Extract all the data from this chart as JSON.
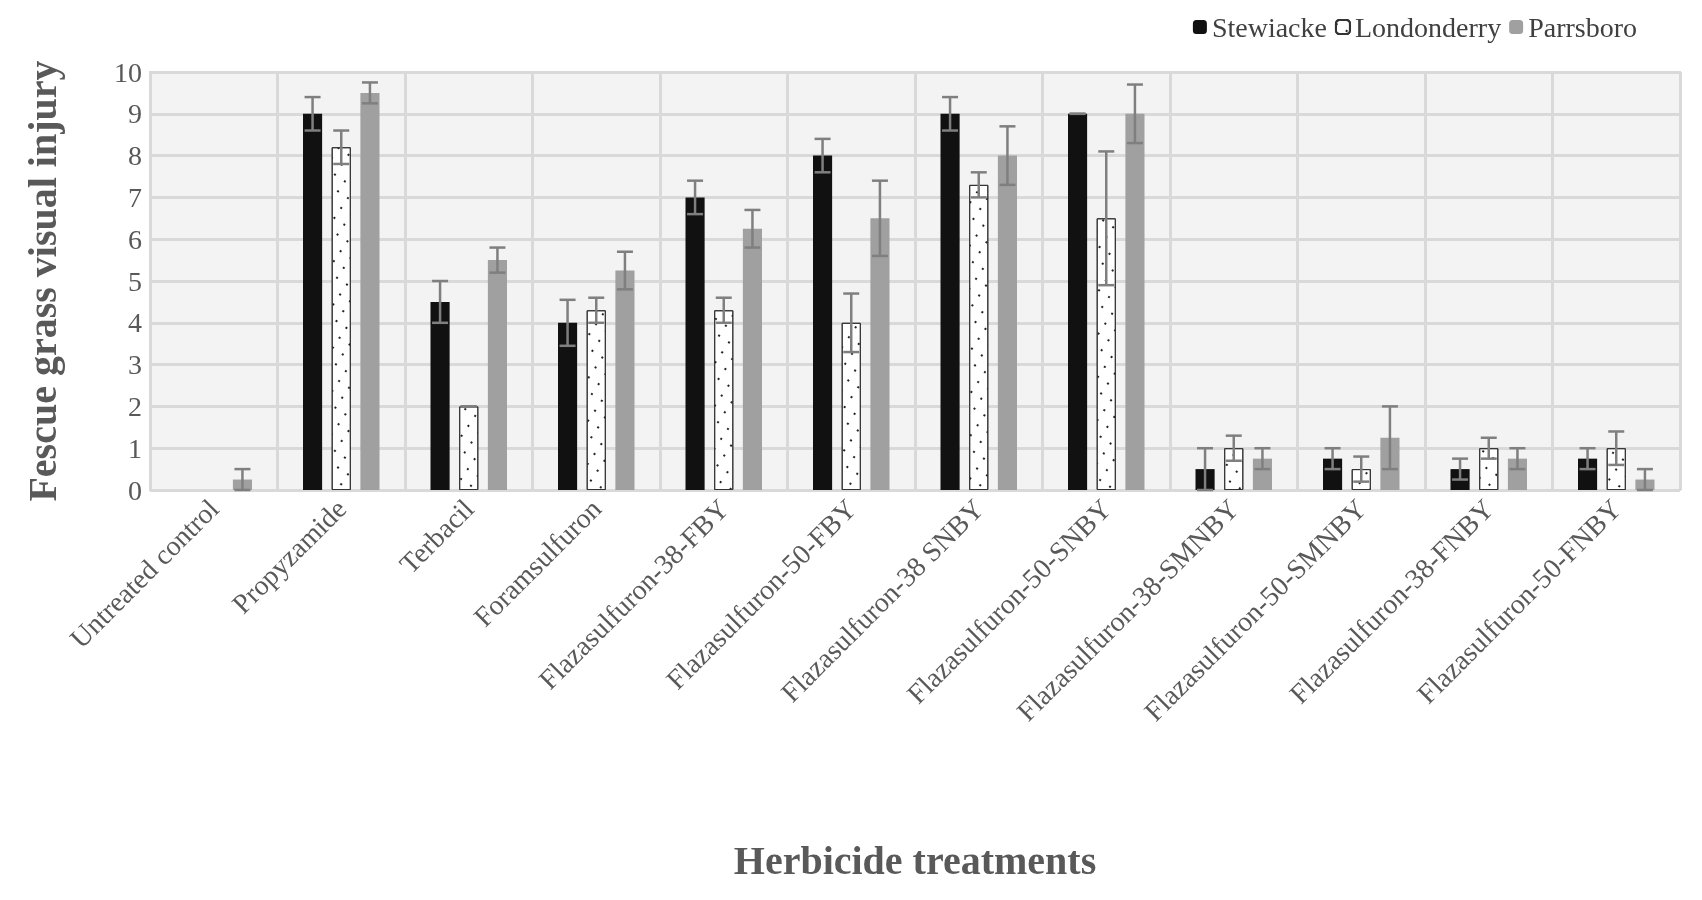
{
  "chart_data": {
    "type": "bar",
    "xlabel": "Herbicide treatments",
    "ylabel": "Fescue grass visual injury",
    "categories": [
      "Untreated control",
      "Propyzamide",
      "Terbacil",
      "Foramsulfuron",
      "Flazasulfuron-38-FBY",
      "Flazasulfuron-50-FBY",
      "Flazasulfuron-38 SNBY",
      "Flazasulfuron-50-SNBY",
      "Flazasulfuron-38-SMNBY",
      "Flazasulfuron-50-SMNBY",
      "Flazasulfuron-38-FNBY",
      "Flazasulfuron-50-FNBY"
    ],
    "series": [
      {
        "name": "Stewiacke",
        "color": "#111111",
        "values": [
          0,
          9,
          4.5,
          4,
          7,
          8,
          9,
          9,
          0.5,
          0.75,
          0.5,
          0.75
        ],
        "errors": [
          null,
          0.4,
          0.5,
          0.55,
          0.4,
          0.4,
          0.4,
          0,
          0.5,
          0.25,
          0.25,
          0.25
        ]
      },
      {
        "name": "Londonderry",
        "color": "#ffffff",
        "values": [
          0,
          8.2,
          2,
          4.3,
          4.3,
          4,
          7.3,
          6.5,
          1,
          0.5,
          1,
          1
        ],
        "errors": [
          null,
          0.4,
          0,
          0.3,
          0.3,
          0.7,
          0.3,
          1.6,
          0.3,
          0.3,
          0.25,
          0.4
        ]
      },
      {
        "name": "Parrsboro",
        "color": "#a0a0a0",
        "values": [
          0.25,
          9.5,
          5.5,
          5.25,
          6.25,
          6.5,
          8,
          9,
          0.75,
          1.25,
          0.75,
          0.25
        ],
        "errors": [
          0.25,
          0.25,
          0.3,
          0.45,
          0.45,
          0.9,
          0.7,
          0.7,
          0.25,
          0.75,
          0.25,
          0.25
        ]
      }
    ],
    "ylim": [
      0,
      10
    ],
    "yticks": [
      0,
      1,
      2,
      3,
      4,
      5,
      6,
      7,
      8,
      9,
      10
    ],
    "grid": true,
    "legend": "top right"
  }
}
